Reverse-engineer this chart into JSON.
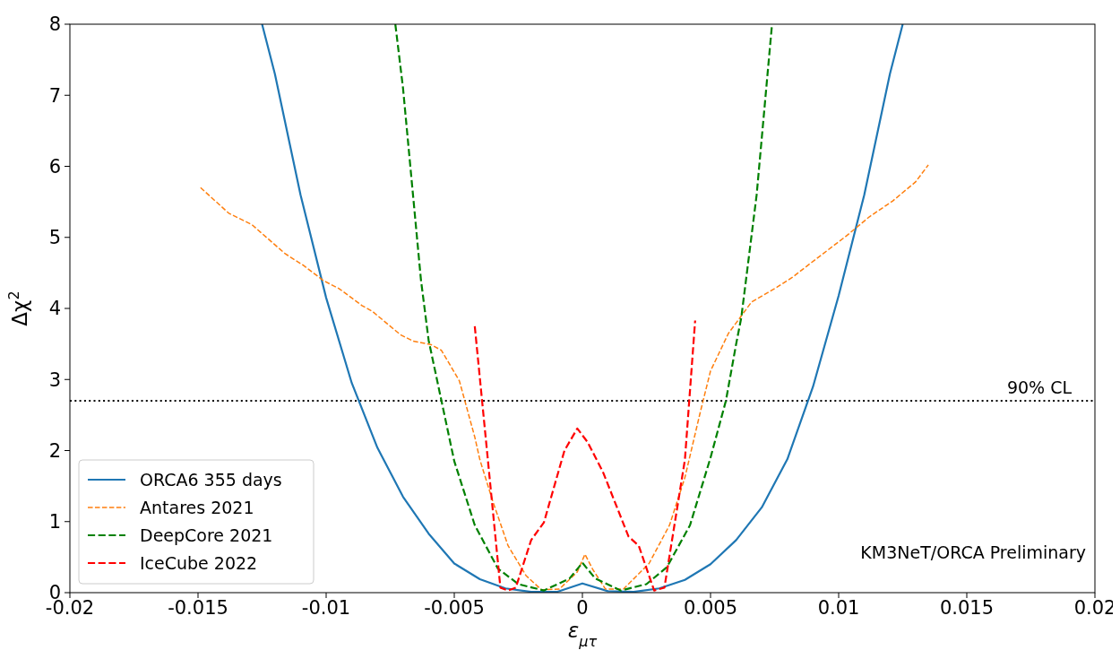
{
  "chart_data": {
    "type": "line",
    "xlabel": "ε$_{μτ}$",
    "ylabel": "Δχ$^{2}$",
    "xlim": [
      -0.02,
      0.02
    ],
    "ylim": [
      0,
      8
    ],
    "xticks": [
      -0.02,
      -0.015,
      -0.01,
      -0.005,
      0,
      0.005,
      0.01,
      0.015,
      0.02
    ],
    "yticks": [
      0,
      1,
      2,
      3,
      4,
      5,
      6,
      7,
      8
    ],
    "grid": false,
    "legend": "bottom left",
    "marker": "none",
    "series": [
      {
        "name": "ORCA6 355 days",
        "color": "#1f77b4",
        "line_style": "solid",
        "x": [
          -0.0125,
          -0.012,
          -0.011,
          -0.01,
          -0.009,
          -0.008,
          -0.007,
          -0.006,
          -0.005,
          -0.004,
          -0.003,
          -0.002,
          -0.001,
          0,
          0.001,
          0.002,
          0.003,
          0.004,
          0.005,
          0.006,
          0.007,
          0.008,
          0.009,
          0.01,
          0.011,
          0.012,
          0.0125
        ],
        "values": [
          8,
          7.3,
          5.6,
          4.15,
          2.95,
          2.04,
          1.35,
          0.83,
          0.41,
          0.19,
          0.06,
          0.01,
          0.01,
          0.13,
          0.02,
          0.01,
          0.06,
          0.18,
          0.4,
          0.74,
          1.2,
          1.88,
          2.9,
          4.18,
          5.6,
          7.3,
          8
        ]
      },
      {
        "name": "Antares 2021",
        "color": "#ff7f0e",
        "line_style": "dashed",
        "x": [
          -0.0149,
          -0.0138,
          -0.0129,
          -0.0116,
          -0.0109,
          -0.0101,
          -0.0095,
          -0.0086,
          -0.0082,
          -0.0071,
          -0.0066,
          -0.0059,
          -0.0055,
          -0.0048,
          -0.0042,
          -0.004,
          -0.0035,
          -0.0029,
          -0.0022,
          -0.0016,
          -0.0009,
          -0.0002,
          0.0001,
          0.0004,
          0.0009,
          0.0016,
          0.0026,
          0.0034,
          0.004,
          0.0046,
          0.005,
          0.0057,
          0.0066,
          0.0076,
          0.0082,
          0.0091,
          0.0103,
          0.0112,
          0.0121,
          0.013,
          0.0135
        ],
        "values": [
          5.7,
          5.34,
          5.18,
          4.77,
          4.61,
          4.39,
          4.28,
          4.04,
          3.96,
          3.63,
          3.54,
          3.49,
          3.41,
          2.98,
          2.19,
          1.87,
          1.29,
          0.66,
          0.24,
          0.04,
          0.05,
          0.29,
          0.54,
          0.33,
          0.05,
          0.05,
          0.41,
          0.95,
          1.62,
          2.54,
          3.12,
          3.65,
          4.09,
          4.3,
          4.44,
          4.69,
          5.02,
          5.29,
          5.51,
          5.78,
          6.02
        ]
      },
      {
        "name": "DeepCore 2021",
        "color": "#008000",
        "line_style": "dashed",
        "x": [
          -0.0073,
          -0.007,
          -0.0063,
          -0.006,
          -0.0055,
          -0.005,
          -0.0042,
          -0.0033,
          -0.0025,
          -0.0015,
          -0.0005,
          0,
          0.0005,
          0.0015,
          0.0025,
          0.0033,
          0.0042,
          0.005,
          0.0056,
          0.006,
          0.0062,
          0.0068,
          0.0074
        ],
        "values": [
          8,
          7.1,
          4.4,
          3.55,
          2.7,
          1.85,
          0.95,
          0.34,
          0.12,
          0.03,
          0.2,
          0.42,
          0.2,
          0.03,
          0.12,
          0.36,
          0.95,
          1.9,
          2.7,
          3.5,
          3.87,
          5.6,
          8
        ]
      },
      {
        "name": "IceCube 2022",
        "color": "#ff0000",
        "line_style": "dashed",
        "x": [
          -0.0042,
          -0.0032,
          -0.0029,
          -0.0026,
          -0.002,
          -0.0015,
          -0.0007,
          -0.0002,
          0.0002,
          0.0008,
          0.0018,
          0.0022,
          0.0028,
          0.0032,
          0.004,
          0.0044
        ],
        "values": [
          3.75,
          0.07,
          0.03,
          0.07,
          0.74,
          0.99,
          2.0,
          2.31,
          2.12,
          1.7,
          0.79,
          0.66,
          0.03,
          0.07,
          1.87,
          3.83
        ]
      }
    ],
    "ref_lines": [
      {
        "axis": "y",
        "value": 2.7,
        "label": "90% CL",
        "color": "#000000",
        "line_style": "dotted"
      }
    ],
    "annotations": [
      "KM3NeT/ORCA Preliminary"
    ]
  }
}
